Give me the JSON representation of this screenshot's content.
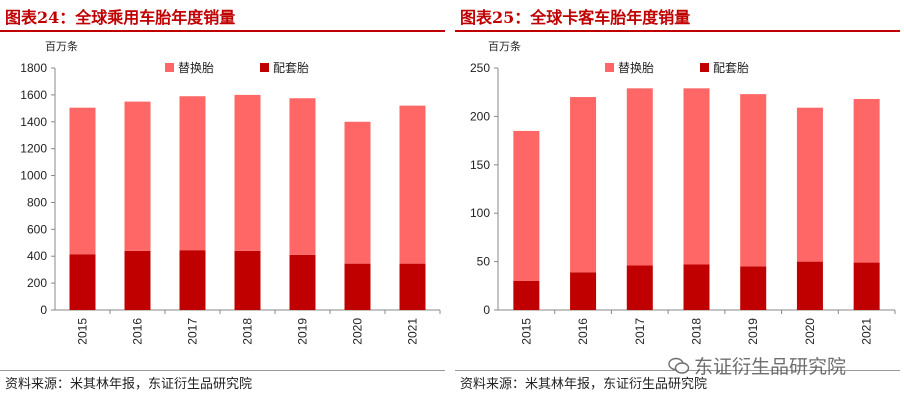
{
  "colors": {
    "replacement": "#ff6666",
    "oe": "#c00000",
    "title": "#c00000"
  },
  "watermark": "东证衍生品研究院",
  "chart_data": [
    {
      "type": "bar",
      "stacked": true,
      "title": "图表24：全球乘用车胎年度销量",
      "unit_label": "百万条",
      "categories": [
        "2015",
        "2016",
        "2017",
        "2018",
        "2019",
        "2020",
        "2021"
      ],
      "series": [
        {
          "name": "配套胎",
          "values": [
            415,
            440,
            445,
            440,
            410,
            345,
            345
          ]
        },
        {
          "name": "替换胎",
          "values": [
            1090,
            1110,
            1145,
            1160,
            1165,
            1055,
            1175
          ]
        }
      ],
      "ylim": [
        0,
        1800
      ],
      "yticks": [
        0,
        200,
        400,
        600,
        800,
        1000,
        1200,
        1400,
        1600,
        1800
      ],
      "legend": [
        "替换胎",
        "配套胎"
      ],
      "legend_position": "top",
      "grid": false,
      "source": "资料来源：米其林年报，东证衍生品研究院"
    },
    {
      "type": "bar",
      "stacked": true,
      "title": "图表25：全球卡客车胎年度销量",
      "unit_label": "百万条",
      "categories": [
        "2015",
        "2016",
        "2017",
        "2018",
        "2019",
        "2020",
        "2021"
      ],
      "series": [
        {
          "name": "配套胎",
          "values": [
            30,
            39,
            46,
            47,
            45,
            50,
            49
          ]
        },
        {
          "name": "替换胎",
          "values": [
            155,
            181,
            183,
            182,
            178,
            159,
            169
          ]
        }
      ],
      "ylim": [
        0,
        250
      ],
      "yticks": [
        0,
        50,
        100,
        150,
        200,
        250
      ],
      "legend": [
        "替换胎",
        "配套胎"
      ],
      "legend_position": "top",
      "grid": false,
      "source": "资料来源：米其林年报，东证衍生品研究院"
    }
  ]
}
